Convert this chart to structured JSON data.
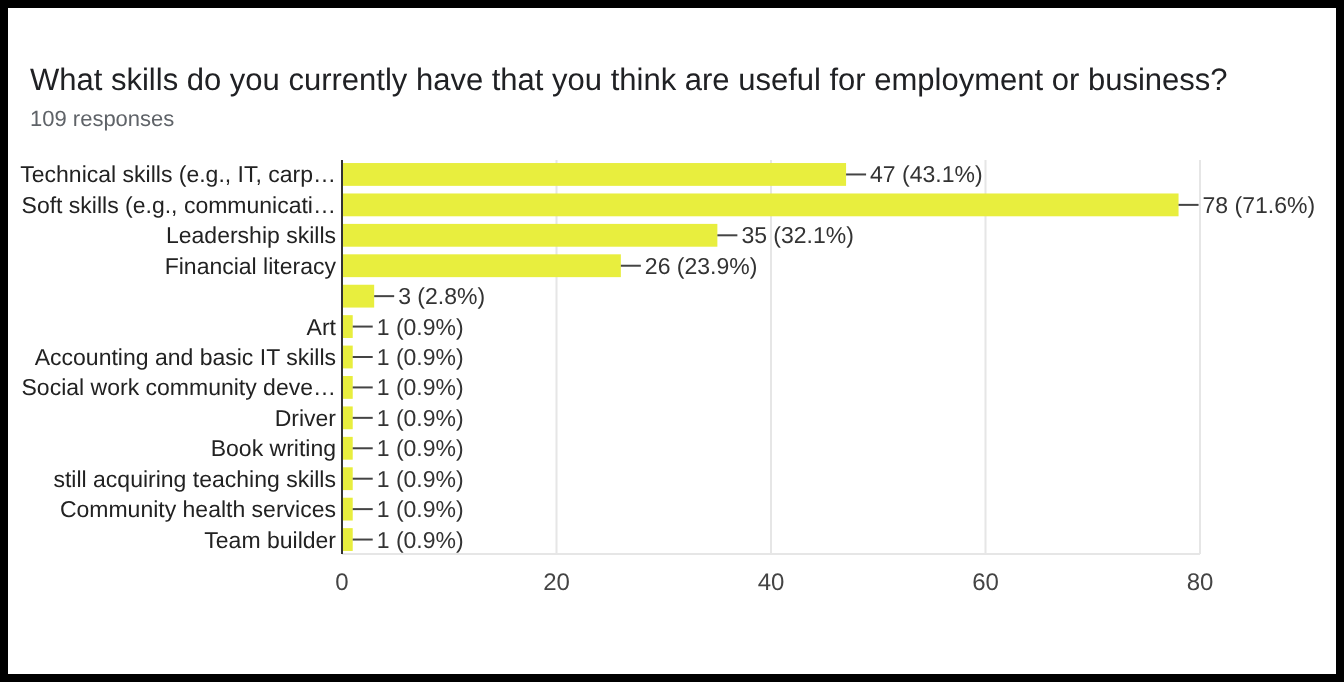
{
  "chart_data": {
    "type": "bar",
    "orientation": "horizontal",
    "title": "What skills do you currently have that you think are useful for employment or business?",
    "subtitle": "109 responses",
    "categories": [
      "Technical skills (e.g., IT, carp…",
      "Soft skills (e.g., communicati…",
      "Leadership skills",
      "Financial literacy",
      null,
      "Art",
      "Accounting and basic IT skills",
      "Social work community deve…",
      "Driver",
      "Book writing",
      "still acquiring teaching skills",
      "Community health services",
      "Team builder"
    ],
    "values": [
      47,
      78,
      35,
      26,
      3,
      1,
      1,
      1,
      1,
      1,
      1,
      1,
      1
    ],
    "value_labels": [
      "47 (43.1%)",
      "78 (71.6%)",
      "35 (32.1%)",
      "26 (23.9%)",
      "3 (2.8%)",
      "1 (0.9%)",
      "1 (0.9%)",
      "1 (0.9%)",
      "1 (0.9%)",
      "1 (0.9%)",
      "1 (0.9%)",
      "1 (0.9%)",
      "1 (0.9%)"
    ],
    "color": "#e8ee3e",
    "xlim": [
      0,
      80
    ],
    "xticks": [
      0,
      20,
      40,
      60,
      80
    ],
    "grid": "x"
  }
}
